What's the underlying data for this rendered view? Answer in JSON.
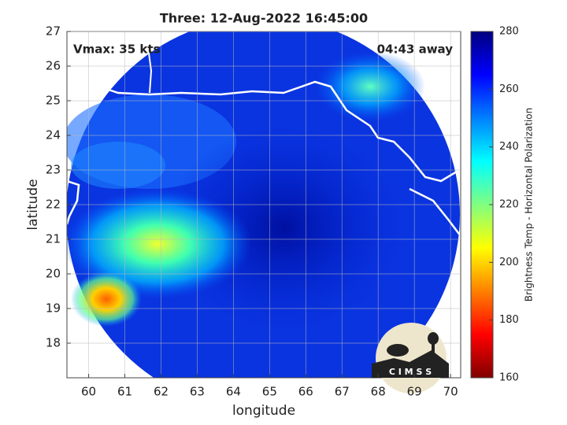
{
  "chart_data": {
    "type": "image",
    "title": "Three: 12-Aug-2022 16:45:00",
    "xlabel": "longitude",
    "ylabel": "latitude",
    "annotations": [
      "Vmax: 35 kts",
      "04:43 away"
    ],
    "xlim": [
      59.4,
      70.28
    ],
    "ylim": [
      17,
      27
    ],
    "xticks": [
      60,
      61,
      62,
      63,
      64,
      65,
      66,
      67,
      68,
      69,
      70
    ],
    "yticks": [
      18,
      19,
      20,
      21,
      22,
      23,
      24,
      25,
      26,
      27
    ],
    "grid": true,
    "colorbar": {
      "label": "Brightness Temp - Horizontal Polarization",
      "lim": [
        160,
        280
      ],
      "ticks": [
        160,
        180,
        200,
        220,
        240,
        260,
        280
      ],
      "colormap": [
        "#800000",
        "#ff0000",
        "#ff8000",
        "#ffff00",
        "#80ff80",
        "#00ffff",
        "#0080ff",
        "#0000ff",
        "#000080"
      ]
    },
    "logo_text": "C I M S S"
  }
}
